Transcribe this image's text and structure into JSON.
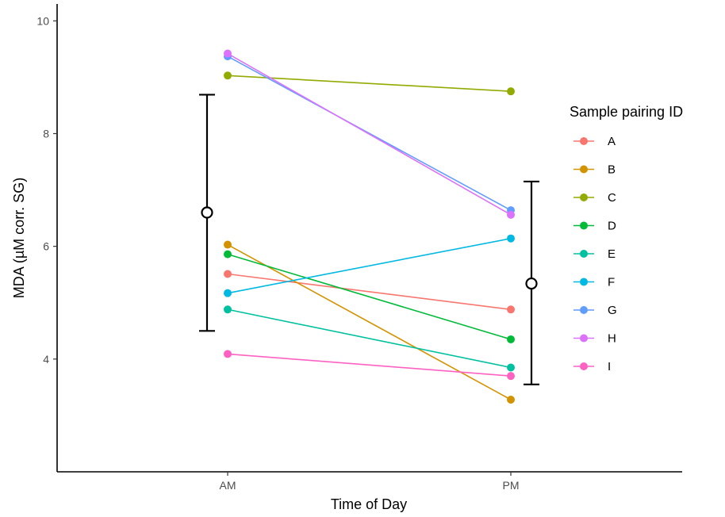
{
  "chart_data": {
    "type": "line",
    "title": "",
    "xlabel": "Time of Day",
    "ylabel": "MDA (µM corr. SG)",
    "categories": [
      "AM",
      "PM"
    ],
    "yticks": [
      4,
      6,
      8,
      10
    ],
    "ylim": [
      2.0,
      10.3
    ],
    "grid": false,
    "legend": {
      "title": "Sample pairing ID",
      "position": "right"
    },
    "series": [
      {
        "name": "A",
        "color": "#F8766D",
        "values": [
          5.51,
          4.88
        ]
      },
      {
        "name": "B",
        "color": "#D39200",
        "values": [
          6.03,
          3.28
        ]
      },
      {
        "name": "C",
        "color": "#93AA00",
        "values": [
          9.03,
          8.75
        ]
      },
      {
        "name": "D",
        "color": "#00BA38",
        "values": [
          5.86,
          4.35
        ]
      },
      {
        "name": "E",
        "color": "#00C19F",
        "values": [
          4.88,
          3.85
        ]
      },
      {
        "name": "F",
        "color": "#00B9E3",
        "values": [
          5.17,
          6.14
        ]
      },
      {
        "name": "G",
        "color": "#619CFF",
        "values": [
          9.37,
          6.64
        ]
      },
      {
        "name": "H",
        "color": "#DB72FB",
        "values": [
          9.42,
          6.56
        ]
      },
      {
        "name": "I",
        "color": "#FF61C3",
        "values": [
          4.09,
          3.7
        ]
      }
    ],
    "summary": [
      {
        "category": "AM",
        "mean": 6.6,
        "lower": 4.5,
        "upper": 8.69
      },
      {
        "category": "PM",
        "mean": 5.34,
        "lower": 3.55,
        "upper": 7.15
      }
    ]
  }
}
